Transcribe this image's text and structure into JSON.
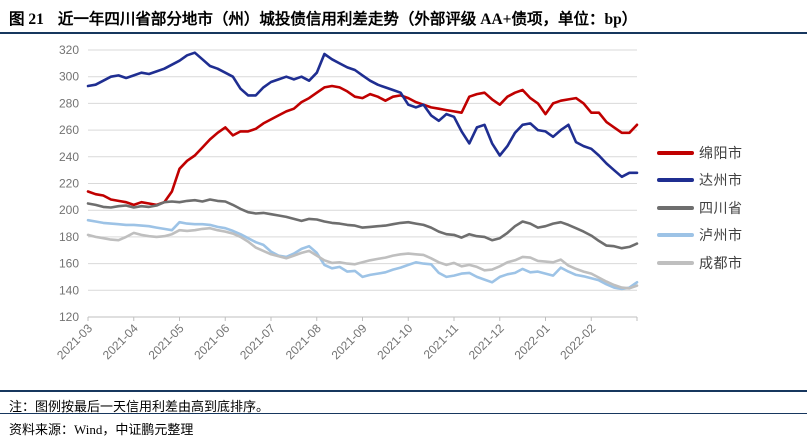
{
  "title": {
    "tag": "图 21",
    "text": "近一年四川省部分地市（州）城投债信用利差走势（外部评级 AA+债项，单位：bp）"
  },
  "footer": {
    "note": "注：图例按最后一天信用利差由高到底排序。",
    "source": "资料来源：Wind，中证鹏元整理"
  },
  "colors": {
    "rule_navy": "#17375E",
    "gridline": "#D9D9D9",
    "axis_line": "#BFBFBF",
    "tick_label": "#737373",
    "legend_text": "#404040",
    "background": "#FFFFFF"
  },
  "chart_data": {
    "type": "line",
    "title": "",
    "xlabel": "",
    "ylabel": "",
    "unit": "bp",
    "ylim": [
      120,
      320
    ],
    "y_ticks": [
      320,
      300,
      280,
      260,
      240,
      220,
      200,
      180,
      160,
      140,
      120
    ],
    "x_labels": [
      "2021-03",
      "2021-04",
      "2021-05",
      "2021-06",
      "2021-07",
      "2021-08",
      "2021-09",
      "2021-10",
      "2021-11",
      "2021-12",
      "2022-01",
      "2022-02"
    ],
    "grid": "horizontal",
    "legend_position": "right",
    "series": [
      {
        "name": "绵阳市",
        "color": "#C00000",
        "values": [
          214,
          212,
          211,
          208,
          207,
          206,
          204,
          206,
          205,
          204,
          206,
          214,
          231,
          237,
          241,
          247,
          253,
          258,
          262,
          256,
          259,
          259,
          261,
          265,
          268,
          271,
          274,
          276,
          281,
          284,
          288,
          292,
          293,
          292,
          289,
          285,
          284,
          287,
          285,
          282,
          285,
          286,
          284,
          281,
          279,
          277,
          276,
          275,
          274,
          273,
          285,
          287,
          288,
          283,
          279,
          285,
          288,
          290,
          284,
          280,
          272,
          280,
          282,
          283,
          284,
          280,
          273,
          273,
          266,
          262,
          258,
          258,
          264
        ]
      },
      {
        "name": "达州市",
        "color": "#1F2E91",
        "values": [
          293,
          294,
          297,
          300,
          301,
          299,
          301,
          303,
          302,
          304,
          306,
          309,
          312,
          316,
          318,
          313,
          308,
          306,
          303,
          300,
          291,
          286,
          286,
          292,
          296,
          298,
          300,
          298,
          300,
          297,
          303,
          317,
          313,
          310,
          307,
          305,
          301,
          297,
          294,
          292,
          290,
          288,
          279,
          277,
          279,
          271,
          267,
          272,
          270,
          259,
          250,
          262,
          264,
          250,
          241,
          248,
          258,
          264,
          265,
          260,
          259,
          255,
          260,
          264,
          251,
          248,
          246,
          241,
          235,
          230,
          225,
          228,
          228
        ]
      },
      {
        "name": "四川省",
        "color": "#6E6E6E",
        "values": [
          205,
          204,
          202.5,
          202,
          203,
          203.5,
          202,
          203,
          202.5,
          203.5,
          206,
          206.5,
          206,
          207,
          207.5,
          206.5,
          208,
          207,
          206.5,
          204,
          201,
          198.5,
          197.5,
          198,
          197,
          196,
          195,
          193.5,
          192,
          193.5,
          193,
          191.5,
          190.5,
          190,
          189,
          188.5,
          187,
          187.5,
          188,
          188.5,
          189.5,
          190.5,
          191,
          190,
          189,
          187,
          184,
          182,
          181.5,
          179.5,
          182,
          180.5,
          180,
          177.5,
          179,
          183,
          188,
          191.5,
          190,
          187,
          188,
          190,
          191,
          189,
          186.5,
          184,
          181,
          177,
          173.5,
          173,
          171.5,
          172.5,
          175
        ]
      },
      {
        "name": "泸州市",
        "color": "#9DC3E6",
        "values": [
          192.5,
          191.5,
          190.5,
          190,
          189.5,
          189,
          189,
          188.5,
          188,
          187,
          186,
          185,
          191,
          190,
          189.5,
          189.5,
          189,
          187.5,
          186.5,
          184.5,
          182,
          179,
          176,
          174,
          169,
          166,
          165,
          167.5,
          171,
          173,
          168,
          159,
          156.5,
          157.5,
          154,
          154.5,
          150,
          151.5,
          152.5,
          153.5,
          155.5,
          157,
          159,
          161,
          160,
          159.5,
          153,
          150,
          151,
          152.5,
          153,
          150,
          148,
          146,
          150,
          152,
          153,
          156,
          153.5,
          154,
          152.5,
          151,
          157,
          154,
          151.5,
          150.5,
          149,
          147.5,
          144.5,
          142,
          141,
          142,
          146
        ]
      },
      {
        "name": "成都市",
        "color": "#BFBFBF",
        "values": [
          181.5,
          180,
          179,
          178,
          177.5,
          180,
          183,
          181.5,
          180.5,
          180,
          180.5,
          182,
          185,
          184.5,
          185,
          186,
          186.5,
          185,
          184,
          182.5,
          180,
          176.5,
          172,
          169.5,
          167,
          165.5,
          164,
          166,
          168,
          169.5,
          166,
          162.5,
          160.5,
          161,
          160,
          159.5,
          161,
          162.5,
          163.5,
          164.5,
          166,
          167,
          167.5,
          167,
          166.5,
          164,
          161,
          159,
          160.5,
          158,
          159,
          157.5,
          155,
          155.5,
          158,
          161,
          162.5,
          165,
          164.5,
          162,
          161.5,
          161,
          163,
          158.5,
          156,
          154,
          152.5,
          149.5,
          146.5,
          144,
          142,
          141.5,
          143.5
        ]
      }
    ]
  }
}
